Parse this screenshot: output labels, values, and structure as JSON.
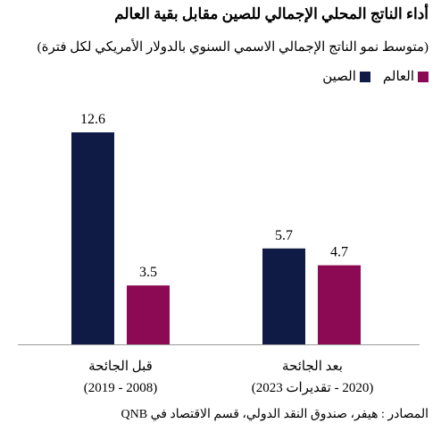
{
  "chart_data": {
    "type": "bar",
    "title": "أداء الناتج المحلي الإجمالي للصين مقابل بقية العالم",
    "subtitle": "(متوسط نمو الناتج الإجمالي الاسمي السنوي بالدولار الأمريكي لكل فترة)",
    "categories": [
      {
        "line1": "قبل الجائحة",
        "line2": "(2008 - 2019)"
      },
      {
        "line1": "بعد الجائحة",
        "line2": "(2020 - تقديرات 2023)"
      }
    ],
    "series": [
      {
        "name": "الصين",
        "color": "#0f1a45",
        "values": [
          12.6,
          5.7
        ],
        "labels": [
          "12.6",
          "5.7"
        ]
      },
      {
        "name": "العالم",
        "color": "#8c0a53",
        "values": [
          3.5,
          4.7
        ],
        "labels": [
          "3.5",
          "4.7"
        ]
      }
    ],
    "ylim": [
      0,
      12.6
    ],
    "legend_position": "top-left",
    "grid": false,
    "source": "المصادر : هيفر، صندوق النقد الدولي، قسم الاقتصاد في QNB"
  }
}
